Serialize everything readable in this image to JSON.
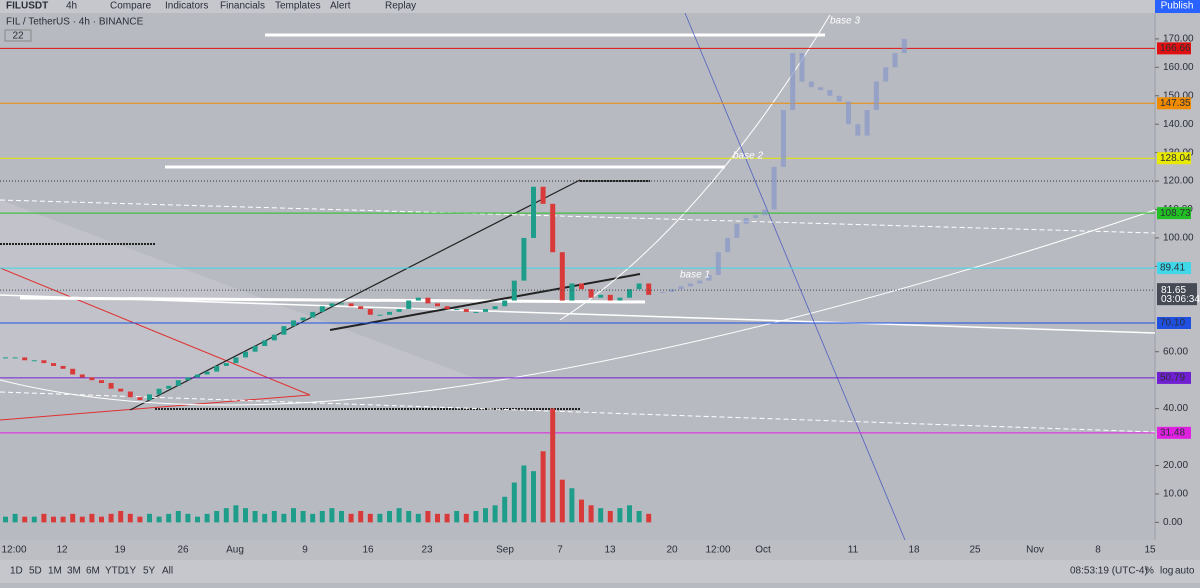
{
  "toolbar": {
    "symbol": "FILUSDT",
    "interval": "4h",
    "items": [
      "Compare",
      "Indicators",
      "Financials",
      "Templates",
      "Alert",
      "Replay"
    ],
    "publish": "Publish"
  },
  "legend": {
    "title": "FIL / TetherUS · 4h · BINANCE",
    "badge": "22"
  },
  "annotations": [
    "base 1",
    "base 2",
    "base 3"
  ],
  "price_axis": {
    "ylim": [
      -6.2,
      179.1
    ],
    "ticks": [
      {
        "value": 170,
        "label": "170.00"
      },
      {
        "value": 160,
        "label": "160.00"
      },
      {
        "value": 150,
        "label": "150.00"
      },
      {
        "value": 140,
        "label": "140.00"
      },
      {
        "value": 130,
        "label": "130.00"
      },
      {
        "value": 120,
        "label": "120.00"
      },
      {
        "value": 110,
        "label": "110.00"
      },
      {
        "value": 100,
        "label": "100.00"
      },
      {
        "value": 90,
        "label": "90.00"
      },
      {
        "value": 60,
        "label": "60.00"
      },
      {
        "value": 40,
        "label": "40.00"
      },
      {
        "value": 20,
        "label": "20.00"
      },
      {
        "value": 10,
        "label": "10.00"
      },
      {
        "value": 0,
        "label": "0.00"
      }
    ]
  },
  "levels": [
    {
      "value": 166.66,
      "label": "166.66",
      "color": "#e01010"
    },
    {
      "value": 147.35,
      "label": "147.35",
      "color": "#f08a00"
    },
    {
      "value": 128.04,
      "label": "128.04",
      "color": "#e8e800"
    },
    {
      "value": 108.73,
      "label": "108.73",
      "color": "#22c022"
    },
    {
      "value": 89.41,
      "label": "89.41",
      "color": "#40d8e8"
    },
    {
      "value": 70.1,
      "label": "70.10",
      "color": "#2050e0"
    },
    {
      "value": 50.79,
      "label": "50.79",
      "color": "#7020d0"
    },
    {
      "value": 31.48,
      "label": "31.48",
      "color": "#e020e0"
    }
  ],
  "current": {
    "value": 81.65,
    "label": "81.65",
    "countdown": "03:06:34",
    "color": "#454a55"
  },
  "candles": {
    "up_color": "#1e9e8a",
    "down_color": "#d83a3a",
    "closes": [
      58,
      58,
      57,
      57,
      56,
      55,
      54,
      52,
      51,
      50,
      49,
      47,
      46,
      44,
      43,
      45,
      47,
      48,
      50,
      51,
      52,
      53,
      55,
      56,
      58,
      60,
      62,
      64,
      66,
      69,
      71,
      72,
      74,
      76,
      77,
      77,
      76,
      75,
      73,
      73,
      74,
      75,
      78,
      79,
      77,
      76,
      75,
      75,
      74,
      74,
      75,
      76,
      78,
      85,
      100,
      118,
      112,
      95,
      78,
      84,
      82,
      79,
      80,
      78,
      79,
      82,
      84,
      80
    ]
  },
  "projection": {
    "color": "#8797c8",
    "closes": [
      81,
      82,
      83,
      84,
      85,
      87,
      95,
      100,
      105,
      107,
      108,
      110,
      125,
      145,
      165,
      155,
      153,
      152,
      150,
      148,
      140,
      136,
      145,
      155,
      160,
      165,
      170
    ]
  },
  "volume": {
    "values": [
      2,
      3,
      2,
      2,
      3,
      2,
      2,
      3,
      2,
      3,
      2,
      3,
      4,
      3,
      2,
      3,
      2,
      3,
      4,
      3,
      2,
      3,
      4,
      5,
      6,
      5,
      4,
      3,
      4,
      3,
      5,
      4,
      3,
      4,
      5,
      4,
      3,
      4,
      3,
      3,
      4,
      5,
      4,
      3,
      4,
      3,
      3,
      4,
      3,
      4,
      5,
      6,
      9,
      14,
      20,
      18,
      25,
      40,
      15,
      12,
      8,
      6,
      5,
      4,
      5,
      6,
      4,
      3
    ]
  },
  "time_axis": {
    "labels": [
      "12:00",
      "12",
      "19",
      "26",
      "Aug",
      "9",
      "16",
      "23",
      "Sep",
      "7",
      "13",
      "20",
      "12:00",
      "Oct",
      "11",
      "18",
      "25",
      "Nov",
      "8",
      "15"
    ]
  },
  "footer": {
    "ranges": [
      "1D",
      "5D",
      "1M",
      "3M",
      "6M",
      "YTD",
      "1Y",
      "5Y",
      "All"
    ],
    "clock": "08:53:19 (UTC-4)",
    "options": [
      "%",
      "log",
      "auto"
    ]
  }
}
